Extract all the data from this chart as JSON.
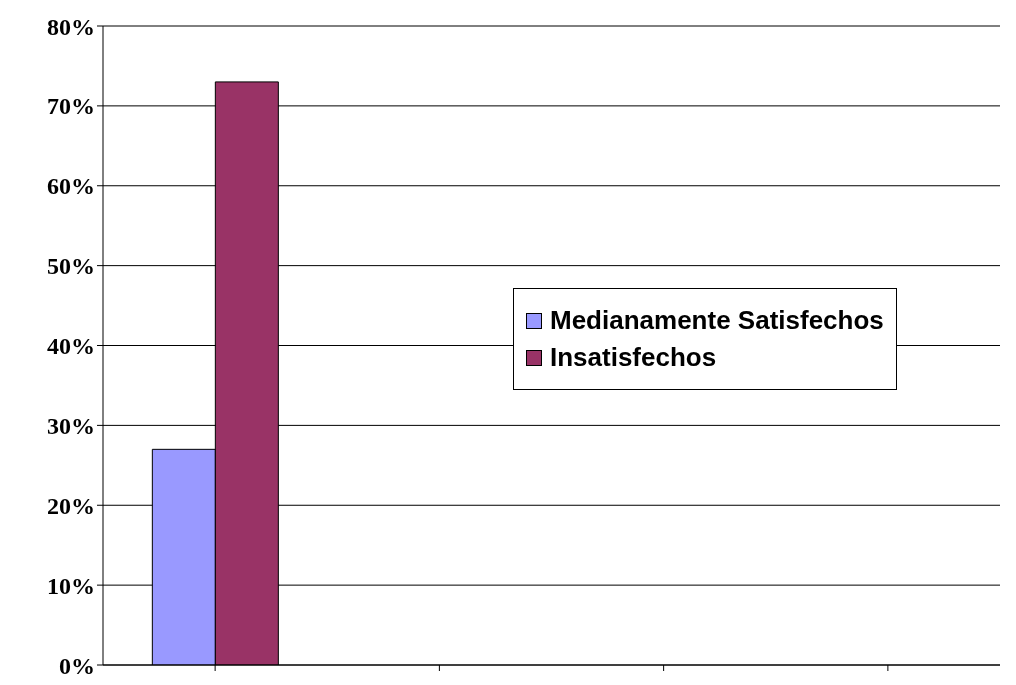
{
  "chart_data": {
    "type": "bar",
    "categories": [
      null,
      null,
      null,
      null
    ],
    "series": [
      {
        "name": "Medianamente Satisfechos",
        "color": "#9999ff",
        "values": [
          27,
          null,
          null,
          null
        ]
      },
      {
        "name": "Insatisfechos",
        "color": "#993366",
        "values": [
          73,
          null,
          null,
          null
        ]
      }
    ],
    "ylim": [
      0,
      80
    ],
    "yticks": [
      {
        "value": 0,
        "label": "0%"
      },
      {
        "value": 10,
        "label": "10%"
      },
      {
        "value": 20,
        "label": "20%"
      },
      {
        "value": 30,
        "label": "30%"
      },
      {
        "value": 40,
        "label": "40%"
      },
      {
        "value": 50,
        "label": "50%"
      },
      {
        "value": 60,
        "label": "60%"
      },
      {
        "value": 70,
        "label": "70%"
      },
      {
        "value": 80,
        "label": "80%"
      }
    ],
    "grid": "y",
    "legend": "right"
  }
}
